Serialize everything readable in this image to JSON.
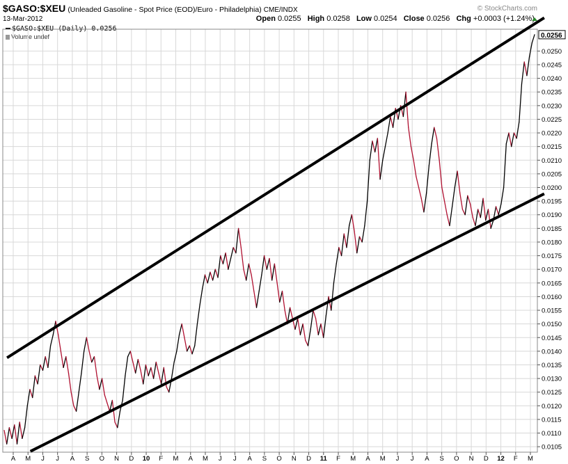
{
  "header": {
    "symbol": "$GASO:$XEU",
    "description": "(Unleaded Gasoline - Spot Price (EOD)/Euro - Philadelphia)",
    "exchange": "CME/INDX",
    "watermark": "© StockCharts.com",
    "date": "13-Mar-2012",
    "open_label": "Open",
    "open_value": "0.0255",
    "high_label": "High",
    "high_value": "0.0258",
    "low_label": "Low",
    "low_value": "0.0254",
    "close_label": "Close",
    "close_value": "0.0256",
    "chg_label": "Chg",
    "chg_value": "+0.0003 (+1.24%)"
  },
  "legend": {
    "series_label": "$GASO:$XEU (Daily) 0.0256",
    "volume_label": "Volume undef"
  },
  "colors": {
    "up": "#000000",
    "down": "#b01030",
    "grid": "#d8d8d8",
    "trend": "#000000"
  },
  "chart_data": {
    "type": "line",
    "grid": true,
    "y_axis_side": "right",
    "ylim": [
      0.0103,
      0.0258
    ],
    "y_ticks": [
      0.0105,
      0.011,
      0.0115,
      0.012,
      0.0125,
      0.013,
      0.0135,
      0.014,
      0.0145,
      0.015,
      0.0155,
      0.016,
      0.0165,
      0.017,
      0.0175,
      0.018,
      0.0185,
      0.019,
      0.0195,
      0.02,
      0.0205,
      0.021,
      0.0215,
      0.022,
      0.0225,
      0.023,
      0.0235,
      0.024,
      0.0245,
      0.025
    ],
    "y_tick_labels": [
      "0.0105",
      "0.0110",
      "0.0115",
      "0.0120",
      "0.0125",
      "0.0130",
      "0.0135",
      "0.0140",
      "0.0145",
      "0.0150",
      "0.0155",
      "0.0160",
      "0.0165",
      "0.0170",
      "0.0175",
      "0.0180",
      "0.0185",
      "0.0190",
      "0.0195",
      "0.0200",
      "0.0205",
      "0.0210",
      "0.0215",
      "0.0220",
      "0.0225",
      "0.0230",
      "0.0235",
      "0.0240",
      "0.0245",
      "0.0250"
    ],
    "last_value_label": "0.0256",
    "last_value": 0.0256,
    "x_tick_labels": [
      "A",
      "M",
      "J",
      "J",
      "A",
      "S",
      "O",
      "N",
      "D",
      "10",
      "F",
      "M",
      "A",
      "M",
      "J",
      "J",
      "A",
      "S",
      "O",
      "N",
      "D",
      "11",
      "F",
      "M",
      "A",
      "M",
      "J",
      "J",
      "A",
      "S",
      "O",
      "N",
      "D",
      "12",
      "F",
      "M"
    ],
    "x_year_labels": [
      "10",
      "11",
      "12"
    ],
    "series": [
      {
        "values": [
          0.0111,
          0.0106,
          0.0112,
          0.0108,
          0.0113,
          0.0106,
          0.0114,
          0.0108,
          0.0112,
          0.012,
          0.0126,
          0.0123,
          0.0131,
          0.0128,
          0.0135,
          0.0133,
          0.0138,
          0.0134,
          0.0142,
          0.0146,
          0.0151,
          0.0146,
          0.014,
          0.0134,
          0.0138,
          0.0132,
          0.0125,
          0.012,
          0.0118,
          0.0125,
          0.0132,
          0.014,
          0.0145,
          0.014,
          0.0136,
          0.0138,
          0.0131,
          0.0126,
          0.013,
          0.0124,
          0.0121,
          0.0118,
          0.0122,
          0.0114,
          0.0112,
          0.0118,
          0.0122,
          0.0131,
          0.0138,
          0.014,
          0.0136,
          0.0132,
          0.0137,
          0.0133,
          0.0128,
          0.0135,
          0.0131,
          0.0134,
          0.013,
          0.0136,
          0.0132,
          0.0128,
          0.0134,
          0.0127,
          0.0125,
          0.013,
          0.0136,
          0.014,
          0.0146,
          0.015,
          0.0145,
          0.014,
          0.0142,
          0.0139,
          0.0142,
          0.015,
          0.0157,
          0.0163,
          0.0168,
          0.0165,
          0.0169,
          0.0166,
          0.017,
          0.0167,
          0.0175,
          0.0172,
          0.0176,
          0.017,
          0.0174,
          0.0178,
          0.0176,
          0.0185,
          0.0178,
          0.017,
          0.0166,
          0.0172,
          0.0168,
          0.0162,
          0.0156,
          0.0162,
          0.0168,
          0.0175,
          0.017,
          0.0174,
          0.0166,
          0.0172,
          0.0165,
          0.0158,
          0.0162,
          0.0155,
          0.015,
          0.0156,
          0.0152,
          0.0148,
          0.0152,
          0.0146,
          0.015,
          0.0144,
          0.0142,
          0.0148,
          0.0155,
          0.0152,
          0.0146,
          0.015,
          0.0145,
          0.0153,
          0.016,
          0.0155,
          0.0165,
          0.0172,
          0.0178,
          0.0175,
          0.0183,
          0.0178,
          0.0186,
          0.019,
          0.0184,
          0.0176,
          0.0182,
          0.018,
          0.0186,
          0.0195,
          0.021,
          0.0217,
          0.0213,
          0.0218,
          0.0203,
          0.021,
          0.0215,
          0.022,
          0.0226,
          0.0222,
          0.0229,
          0.0225,
          0.023,
          0.0226,
          0.0235,
          0.0222,
          0.0215,
          0.021,
          0.0204,
          0.02,
          0.0196,
          0.0191,
          0.0198,
          0.0208,
          0.0216,
          0.0222,
          0.0218,
          0.021,
          0.02,
          0.0195,
          0.019,
          0.0186,
          0.0193,
          0.02,
          0.0206,
          0.0198,
          0.0192,
          0.019,
          0.0197,
          0.0194,
          0.0189,
          0.0186,
          0.0192,
          0.0189,
          0.0196,
          0.0188,
          0.0192,
          0.0185,
          0.0188,
          0.0193,
          0.019,
          0.0194,
          0.02,
          0.0216,
          0.022,
          0.0215,
          0.022,
          0.0218,
          0.0224,
          0.0238,
          0.0246,
          0.0241,
          0.0248,
          0.0253,
          0.0256
        ]
      }
    ],
    "trendlines": [
      {
        "from": [
          "2009-03-19",
          0.01376
        ],
        "to": [
          "2012-03-30",
          0.02622
        ]
      },
      {
        "from": [
          "2009-05-06",
          0.01033
        ],
        "to": [
          "2012-03-30",
          0.01977
        ]
      }
    ]
  }
}
